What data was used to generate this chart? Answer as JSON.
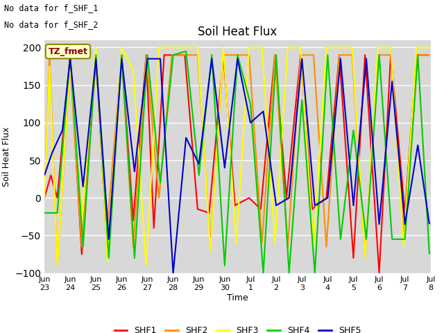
{
  "title": "Soil Heat Flux",
  "ylabel": "Soil Heat Flux",
  "xlabel": "Time",
  "ylim": [
    -100,
    210
  ],
  "yticks": [
    -100,
    -50,
    0,
    50,
    100,
    150,
    200
  ],
  "text_lines": [
    "No data for f_SHF_1",
    "No data for f_SHF_2"
  ],
  "annotation": "TZ_fmet",
  "legend": [
    "SHF1",
    "SHF2",
    "SHF3",
    "SHF4",
    "SHF5"
  ],
  "colors": {
    "SHF1": "#FF0000",
    "SHF2": "#FF8C00",
    "SHF3": "#FFFF00",
    "SHF4": "#00CC00",
    "SHF5": "#0000CC"
  },
  "background_color": "#D8D8D8",
  "SHF1": {
    "x": [
      0.0,
      0.25,
      0.5,
      1.0,
      1.45,
      2.0,
      2.45,
      3.0,
      3.45,
      3.95,
      4.25,
      4.65,
      4.95,
      5.45,
      5.95,
      6.4,
      6.95,
      7.4,
      7.95,
      8.4,
      8.95,
      9.4,
      9.95,
      10.4,
      10.95,
      11.45,
      12.0,
      12.45,
      13.0,
      13.45,
      14.0,
      14.45,
      14.95
    ],
    "y": [
      0,
      30,
      0,
      190,
      -75,
      190,
      -80,
      190,
      -30,
      190,
      -40,
      190,
      190,
      190,
      -15,
      -20,
      190,
      -10,
      0,
      -15,
      190,
      0,
      190,
      -15,
      0,
      190,
      -80,
      190,
      -100,
      190,
      -20,
      190,
      190
    ]
  },
  "SHF2": {
    "x": [
      0.0,
      0.2,
      0.5,
      1.0,
      1.45,
      2.0,
      2.45,
      3.0,
      3.45,
      3.95,
      4.45,
      4.95,
      5.45,
      5.95,
      6.45,
      6.95,
      7.45,
      7.95,
      8.45,
      8.95,
      9.45,
      9.95,
      10.45,
      10.95,
      11.45,
      11.95,
      12.45,
      12.95,
      13.45,
      13.95,
      14.45,
      14.95
    ],
    "y": [
      0,
      190,
      -90,
      175,
      -65,
      180,
      -35,
      190,
      -65,
      190,
      0,
      190,
      190,
      190,
      -60,
      190,
      190,
      190,
      -60,
      190,
      -65,
      190,
      190,
      -65,
      190,
      190,
      -80,
      190,
      190,
      -50,
      190,
      190
    ]
  },
  "SHF3": {
    "x": [
      0.0,
      0.2,
      0.5,
      1.0,
      1.45,
      2.0,
      2.45,
      3.0,
      3.45,
      3.95,
      4.45,
      4.95,
      5.45,
      5.95,
      6.45,
      6.95,
      7.45,
      7.95,
      8.45,
      8.95,
      9.45,
      9.95,
      10.45,
      10.95,
      11.45,
      11.95,
      12.45,
      12.95,
      13.45,
      13.95,
      14.45,
      14.95
    ],
    "y": [
      0,
      175,
      -90,
      180,
      -30,
      200,
      -85,
      200,
      170,
      -90,
      200,
      200,
      200,
      200,
      -70,
      200,
      -60,
      200,
      200,
      -60,
      200,
      200,
      -65,
      200,
      200,
      200,
      -80,
      200,
      200,
      -65,
      200,
      200
    ]
  },
  "SHF4": {
    "x": [
      0.0,
      0.5,
      1.0,
      1.5,
      2.0,
      2.5,
      3.0,
      3.5,
      4.0,
      4.5,
      5.0,
      5.5,
      6.0,
      6.5,
      7.0,
      7.5,
      8.0,
      8.5,
      9.0,
      9.5,
      10.0,
      10.5,
      11.0,
      11.5,
      12.0,
      12.5,
      13.0,
      13.5,
      14.0,
      14.5,
      14.95
    ],
    "y": [
      -20,
      -20,
      190,
      -65,
      190,
      -80,
      190,
      -80,
      190,
      20,
      190,
      195,
      30,
      190,
      -90,
      190,
      125,
      -100,
      190,
      -100,
      130,
      -100,
      190,
      -55,
      90,
      -55,
      190,
      -55,
      -55,
      190,
      -75
    ]
  },
  "SHF5": {
    "x": [
      0.0,
      0.3,
      0.7,
      1.0,
      1.5,
      2.0,
      2.5,
      3.0,
      3.5,
      4.0,
      4.5,
      5.0,
      5.5,
      6.0,
      6.5,
      7.0,
      7.5,
      8.0,
      8.5,
      9.0,
      9.5,
      10.0,
      10.5,
      11.0,
      11.5,
      12.0,
      12.5,
      13.0,
      13.5,
      14.0,
      14.5,
      14.95
    ],
    "y": [
      30,
      60,
      90,
      185,
      15,
      185,
      -55,
      185,
      35,
      185,
      185,
      -100,
      80,
      45,
      185,
      40,
      185,
      100,
      115,
      -10,
      0,
      185,
      -10,
      0,
      185,
      -10,
      185,
      -35,
      155,
      -35,
      70,
      -35
    ]
  },
  "xtick_labels": [
    "Jun 23",
    "Jun 24",
    "Jun 25",
    "Jun 26",
    "Jun 27",
    "Jun 28",
    "Jun 29",
    "Jun 30",
    "Jul 1",
    "Jul 2",
    "Jul 3",
    "Jul 4",
    "Jul 5",
    "Jul 6",
    "Jul 7",
    "Jul 8"
  ],
  "xtick_positions": [
    0,
    1,
    2,
    3,
    4,
    5,
    6,
    7,
    8,
    9,
    10,
    11,
    12,
    13,
    14,
    15
  ]
}
